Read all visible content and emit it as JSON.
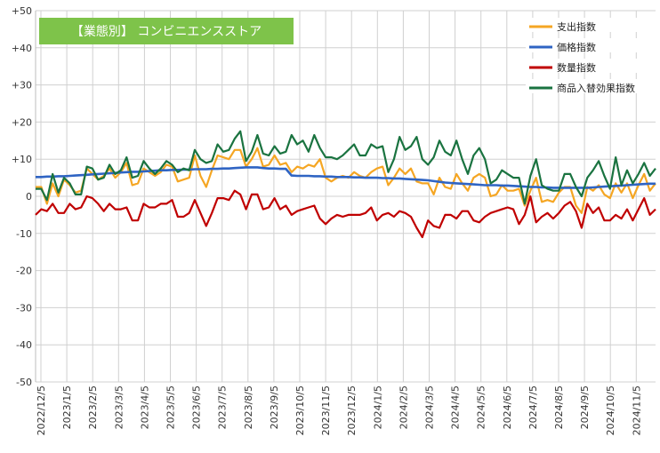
{
  "chart_data": {
    "type": "line",
    "title": "【業態別】 コンビニエンスストア",
    "xlabel": "",
    "ylabel": "",
    "ylim": [
      -50,
      50
    ],
    "yticks": [
      50,
      40,
      30,
      20,
      10,
      0,
      -10,
      -20,
      -30,
      -40,
      -50
    ],
    "ytick_labels": [
      "+50",
      "+40",
      "+30",
      "+20",
      "+10",
      "0",
      "-10",
      "-20",
      "-30",
      "-40",
      "-50"
    ],
    "xtick_labels": [
      "2022/12/5",
      "2023/1/5",
      "2023/2/5",
      "2023/3/5",
      "2023/4/5",
      "2023/5/5",
      "2023/6/5",
      "2023/7/5",
      "2023/8/5",
      "2023/9/5",
      "2023/10/5",
      "2023/11/5",
      "2023/12/5",
      "2024/1/5",
      "2024/2/5",
      "2024/3/5",
      "2024/4/5",
      "2024/5/5",
      "2024/6/5",
      "2024/7/5",
      "2024/8/5",
      "2024/9/5",
      "2024/10/5",
      "2024/11/5"
    ],
    "grid": true,
    "legend_position": "top-right",
    "series": [
      {
        "name": "支出指数",
        "color": "#f5a623",
        "values": [
          2.5,
          2.5,
          -2.0,
          3.5,
          0.0,
          4.5,
          3.0,
          1.0,
          1.5,
          7.5,
          6.0,
          4.5,
          5.5,
          7.5,
          5.0,
          6.5,
          9.0,
          3.0,
          3.5,
          7.5,
          6.5,
          5.5,
          6.5,
          8.5,
          8.0,
          4.0,
          4.5,
          5.0,
          11.0,
          5.5,
          2.5,
          7.0,
          11.0,
          10.5,
          10.0,
          12.5,
          12.5,
          8.0,
          10.0,
          13.0,
          8.0,
          8.5,
          11.0,
          8.5,
          9.0,
          6.5,
          8.0,
          7.5,
          8.5,
          8.0,
          10.0,
          5.0,
          4.0,
          5.0,
          5.5,
          5.0,
          6.5,
          5.5,
          5.0,
          6.5,
          7.5,
          8.0,
          3.0,
          5.0,
          7.5,
          6.0,
          7.5,
          4.0,
          3.5,
          3.5,
          0.5,
          5.0,
          2.5,
          2.0,
          6.0,
          3.5,
          1.5,
          5.0,
          6.0,
          5.0,
          0.0,
          0.5,
          3.0,
          1.5,
          1.5,
          2.0,
          -2.5,
          1.5,
          5.0,
          -1.5,
          -1.0,
          -1.5,
          1.0,
          2.5,
          2.5,
          -2.5,
          -4.5,
          2.5,
          1.5,
          3.0,
          0.5,
          -0.5,
          3.5,
          1.0,
          3.5,
          -0.5,
          3.0,
          6.0,
          1.5,
          3.5
        ]
      },
      {
        "name": "価格指数",
        "color": "#2f64c3",
        "values": [
          5.2,
          5.2,
          5.3,
          5.3,
          5.4,
          5.4,
          5.5,
          5.6,
          5.7,
          5.8,
          5.9,
          6.0,
          6.1,
          6.2,
          6.3,
          6.4,
          6.5,
          6.6,
          6.6,
          6.7,
          6.8,
          6.9,
          7.0,
          7.0,
          7.1,
          7.1,
          7.2,
          7.2,
          7.3,
          7.3,
          7.3,
          7.4,
          7.4,
          7.5,
          7.5,
          7.6,
          7.7,
          7.8,
          7.8,
          7.8,
          7.6,
          7.5,
          7.5,
          7.4,
          7.4,
          5.6,
          5.5,
          5.5,
          5.5,
          5.4,
          5.4,
          5.3,
          5.3,
          5.2,
          5.2,
          5.2,
          5.1,
          5.1,
          5.0,
          5.0,
          5.0,
          4.9,
          4.9,
          4.8,
          4.8,
          4.7,
          4.6,
          4.5,
          4.4,
          4.3,
          4.1,
          3.9,
          3.7,
          3.6,
          3.5,
          3.4,
          3.3,
          3.2,
          3.1,
          3.0,
          3.0,
          3.0,
          2.9,
          2.9,
          2.8,
          2.7,
          2.6,
          2.5,
          2.5,
          2.4,
          2.4,
          2.3,
          2.3,
          2.3,
          2.3,
          2.3,
          2.3,
          2.3,
          2.4,
          2.5,
          2.6,
          2.7,
          2.8,
          2.9,
          3.0,
          3.1,
          3.2,
          3.3,
          3.4,
          3.4
        ]
      },
      {
        "name": "数量指数",
        "color": "#c00000",
        "values": [
          -5.0,
          -3.5,
          -4.0,
          -2.0,
          -4.5,
          -4.5,
          -2.0,
          -3.5,
          -3.0,
          0.0,
          -0.5,
          -2.0,
          -4.0,
          -2.0,
          -3.5,
          -3.5,
          -3.0,
          -6.5,
          -6.5,
          -2.0,
          -3.0,
          -3.0,
          -2.0,
          -2.0,
          -1.0,
          -5.5,
          -5.5,
          -4.5,
          -1.0,
          -4.5,
          -8.0,
          -4.5,
          -0.5,
          -0.5,
          -1.0,
          1.5,
          0.5,
          -3.5,
          0.5,
          0.5,
          -3.5,
          -3.0,
          -0.5,
          -3.5,
          -2.5,
          -5.0,
          -4.0,
          -3.5,
          -3.0,
          -2.5,
          -6.0,
          -7.5,
          -6.0,
          -5.0,
          -5.5,
          -5.0,
          -5.0,
          -5.0,
          -4.5,
          -3.0,
          -6.5,
          -5.0,
          -4.5,
          -5.5,
          -4.0,
          -4.5,
          -5.5,
          -8.5,
          -11.0,
          -6.5,
          -8.0,
          -8.5,
          -5.0,
          -5.0,
          -6.0,
          -4.0,
          -4.0,
          -6.5,
          -7.0,
          -5.5,
          -4.5,
          -4.0,
          -3.5,
          -3.0,
          -3.5,
          -7.5,
          -5.0,
          0.0,
          -7.0,
          -5.5,
          -4.5,
          -6.0,
          -4.5,
          -2.5,
          -1.5,
          -4.0,
          -8.5,
          -2.0,
          -4.5,
          -3.0,
          -6.5,
          -6.5,
          -5.0,
          -6.0,
          -3.5,
          -6.5,
          -3.5,
          -0.5,
          -5.0,
          -3.5
        ]
      },
      {
        "name": "商品入替効果指数",
        "color": "#1a7340",
        "values": [
          2.0,
          2.0,
          -1.0,
          6.0,
          1.0,
          5.0,
          3.5,
          0.5,
          0.5,
          8.0,
          7.5,
          4.5,
          5.0,
          8.5,
          6.0,
          7.0,
          10.5,
          5.0,
          5.5,
          9.5,
          7.5,
          6.0,
          7.5,
          9.5,
          8.5,
          6.5,
          7.5,
          7.0,
          12.5,
          10.0,
          9.0,
          9.5,
          14.0,
          12.0,
          12.5,
          15.5,
          17.5,
          9.5,
          12.0,
          16.5,
          11.5,
          11.0,
          13.5,
          11.5,
          12.0,
          16.5,
          14.0,
          15.0,
          12.0,
          16.5,
          13.0,
          10.5,
          10.5,
          10.0,
          11.0,
          12.5,
          14.0,
          11.0,
          11.0,
          14.0,
          13.0,
          13.5,
          6.5,
          10.0,
          16.0,
          12.5,
          13.5,
          16.0,
          10.0,
          8.5,
          10.5,
          15.0,
          12.0,
          11.0,
          15.0,
          10.0,
          6.0,
          11.0,
          13.0,
          10.0,
          3.5,
          4.5,
          7.0,
          6.0,
          5.0,
          5.0,
          -2.0,
          5.5,
          10.0,
          3.0,
          2.0,
          1.5,
          1.5,
          6.0,
          6.0,
          2.5,
          0.0,
          5.0,
          7.0,
          9.5,
          5.5,
          2.0,
          10.5,
          3.0,
          7.0,
          3.5,
          6.0,
          9.0,
          5.5,
          7.5
        ]
      }
    ]
  }
}
